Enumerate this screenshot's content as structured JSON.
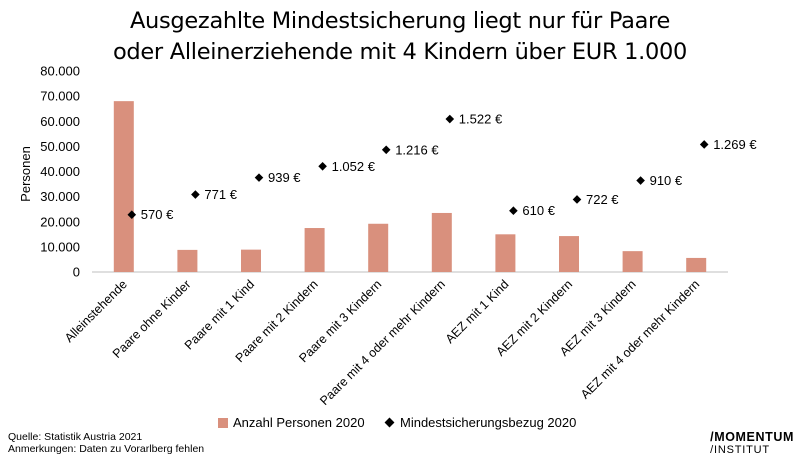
{
  "chart_data": {
    "type": "bar",
    "title_lines": [
      "Ausgezahlte Mindestsicherung liegt nur für Paare",
      "oder Alleinerziehende mit 4 Kindern über EUR 1.000"
    ],
    "ylabel": "Personen",
    "ylim": [
      0,
      80000
    ],
    "yticks": [
      "0",
      "10.000",
      "20.000",
      "30.000",
      "40.000",
      "50.000",
      "60.000",
      "70.000",
      "80.000"
    ],
    "grid": false,
    "legend_position": "bottom",
    "categories": [
      "Alleinstehende",
      "Paare ohne Kinder",
      "Paare mit 1 Kind",
      "Paare mit 2 Kindern",
      "Paare mit 3 Kindern",
      "Paare mit 4 oder mehr Kindern",
      "AEZ mit 1 Kind",
      "AEZ mit 2 Kindern",
      "AEZ mit 3 Kindern",
      "AEZ mit 4 oder mehr Kindern"
    ],
    "series": [
      {
        "name": "Anzahl Personen 2020",
        "type": "bar",
        "color": "#d9907d",
        "values": [
          68000,
          8800,
          8900,
          17500,
          19200,
          23500,
          15000,
          14300,
          8300,
          5600
        ]
      },
      {
        "name": "Mindestsicherungsbezug 2020",
        "type": "scatter",
        "marker": "diamond",
        "color": "#000000",
        "values": [
          570,
          771,
          939,
          1052,
          1216,
          1522,
          610,
          722,
          910,
          1269
        ],
        "labels": [
          "570 €",
          "771 €",
          "939 €",
          "1.052 €",
          "1.216 €",
          "1.522 €",
          "610 €",
          "722 €",
          "910 €",
          "1.269 €"
        ]
      }
    ]
  },
  "footer": {
    "source": "Quelle: Statistik Austria 2021",
    "note": "Anmerkungen: Daten zu Vorarlberg fehlen"
  },
  "logo": {
    "line1": "/MOMENTUM",
    "line2": "/INSTITUT"
  }
}
